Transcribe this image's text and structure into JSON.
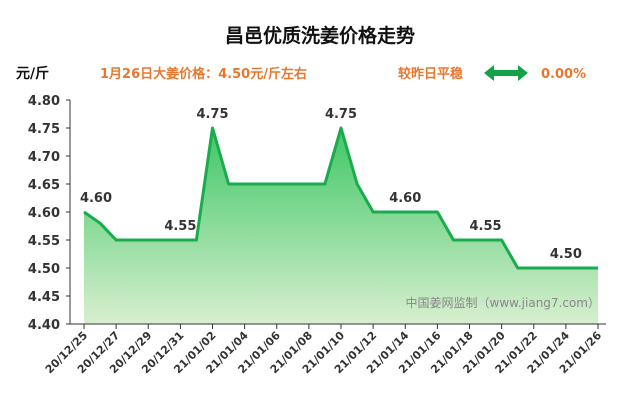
{
  "chart_data": {
    "type": "area",
    "title": "昌邑优质洗姜价格走势",
    "ylabel": "元/斤",
    "ylim": [
      4.4,
      4.8
    ],
    "yticks": [
      "4.80",
      "4.75",
      "4.70",
      "4.65",
      "4.60",
      "4.55",
      "4.50",
      "4.45",
      "4.40"
    ],
    "x_tick_labels": [
      "20/12/25",
      "20/12/27",
      "20/12/29",
      "20/12/31",
      "21/01/02",
      "21/01/04",
      "21/01/06",
      "21/01/08",
      "21/01/10",
      "21/01/12",
      "21/01/14",
      "21/01/16",
      "21/01/18",
      "21/01/20",
      "21/01/22",
      "21/01/24",
      "21/01/26"
    ],
    "x": [
      "20/12/25",
      "20/12/26",
      "20/12/27",
      "20/12/28",
      "20/12/29",
      "20/12/30",
      "20/12/31",
      "21/01/01",
      "21/01/02",
      "21/01/03",
      "21/01/04",
      "21/01/05",
      "21/01/06",
      "21/01/07",
      "21/01/08",
      "21/01/09",
      "21/01/10",
      "21/01/11",
      "21/01/12",
      "21/01/13",
      "21/01/14",
      "21/01/15",
      "21/01/16",
      "21/01/17",
      "21/01/18",
      "21/01/19",
      "21/01/20",
      "21/01/21",
      "21/01/22",
      "21/01/23",
      "21/01/24",
      "21/01/25",
      "21/01/26"
    ],
    "series": [
      {
        "values": [
          4.6,
          4.58,
          4.55,
          4.55,
          4.55,
          4.55,
          4.55,
          4.55,
          4.75,
          4.65,
          4.65,
          4.65,
          4.65,
          4.65,
          4.65,
          4.65,
          4.75,
          4.65,
          4.6,
          4.6,
          4.6,
          4.6,
          4.6,
          4.55,
          4.55,
          4.55,
          4.55,
          4.5,
          4.5,
          4.5,
          4.5,
          4.5,
          4.5
        ]
      }
    ],
    "data_labels": [
      {
        "x": "20/12/25",
        "text": "4.60"
      },
      {
        "x": "20/12/31",
        "text": "4.55"
      },
      {
        "x": "21/01/02",
        "text": "4.75"
      },
      {
        "x": "21/01/10",
        "text": "4.75"
      },
      {
        "x": "21/01/14",
        "text": "4.60"
      },
      {
        "x": "21/01/19",
        "text": "4.55"
      },
      {
        "x": "21/01/24",
        "text": "4.50"
      }
    ],
    "grid": false,
    "legend": "none",
    "colors": {
      "line": "#1aab4c",
      "fill_top": "#3ec766",
      "fill_bottom": "#d8efcf",
      "accent_text": "#e8772e",
      "arrow": "#13a24a"
    }
  },
  "header": {
    "price_info": "1月26日大姜价格：4.50元/斤左右",
    "compare_label": "较昨日平稳",
    "change_icon": "double-arrow-icon",
    "change_percent": "0.00%"
  },
  "watermark": "中国姜网监制（www.jiang7.com）"
}
